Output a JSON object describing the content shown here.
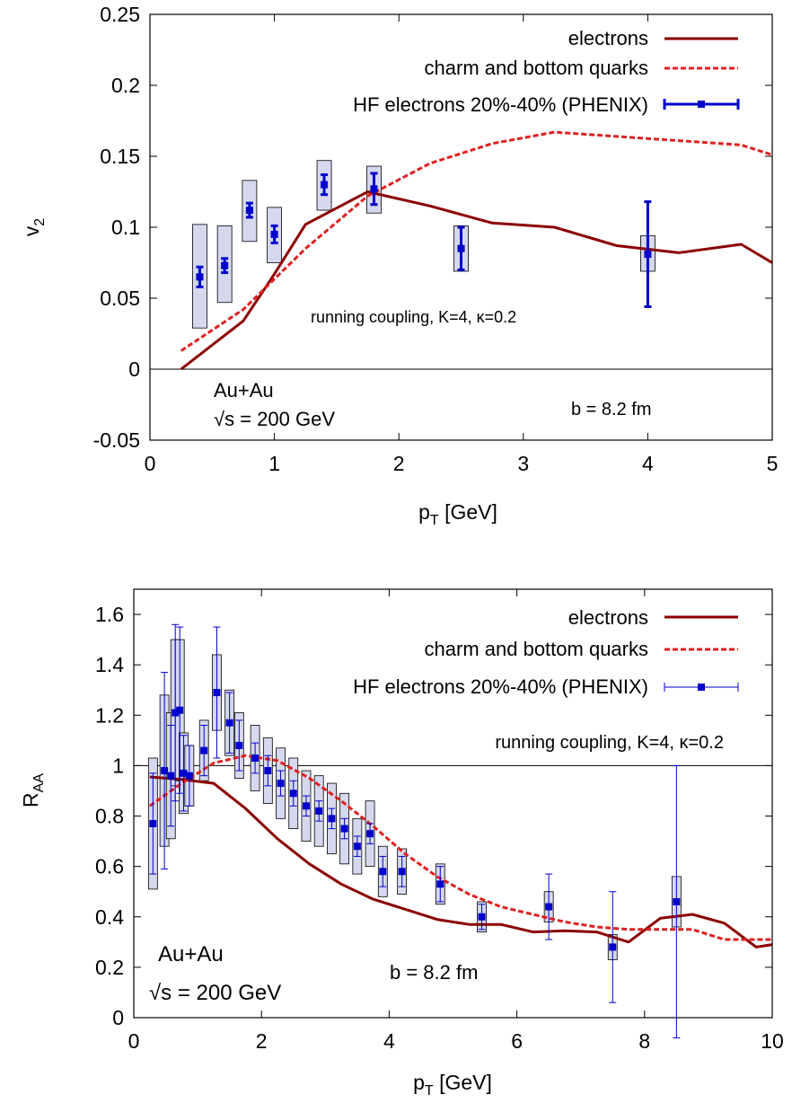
{
  "chart_data": [
    {
      "type": "line",
      "xlabel_main": "p",
      "xlabel_sub": "T",
      "xlabel_rest": " [GeV]",
      "ylabel_main": "v",
      "ylabel_sub": "2",
      "xlim": [
        0,
        5
      ],
      "ylim": [
        -0.05,
        0.25
      ],
      "xticks": [
        "0",
        "1",
        "2",
        "3",
        "4",
        "5"
      ],
      "xtick_values": [
        0,
        1,
        2,
        3,
        4,
        5
      ],
      "yticks": [
        "-0.05",
        "0",
        "0.05",
        "0.1",
        "0.15",
        "0.2",
        "0.25"
      ],
      "ytick_values": [
        -0.05,
        0,
        0.05,
        0.1,
        0.15,
        0.2,
        0.25
      ],
      "hline": 0,
      "legend": [
        "electrons",
        "charm and bottom quarks",
        "HF electrons 20%-40% (PHENIX)"
      ],
      "annotations": {
        "model": "running coupling, K=4, κ=0.2",
        "system": "Au+Au",
        "energy": "√s = 200 GeV",
        "impact": "b = 8.2 fm"
      },
      "series": [
        {
          "name": "electrons",
          "color": "#8B0000",
          "style": "solid",
          "x": [
            0.25,
            0.75,
            1.0,
            1.25,
            1.75,
            2.25,
            2.75,
            3.25,
            3.75,
            4.25,
            4.75,
            5.0
          ],
          "y": [
            0.0,
            0.034,
            0.067,
            0.102,
            0.125,
            0.115,
            0.103,
            0.1,
            0.087,
            0.082,
            0.088,
            0.075
          ]
        },
        {
          "name": "charm and bottom quarks",
          "color": "#E02020",
          "style": "dashed",
          "x": [
            0.25,
            0.75,
            1.25,
            1.75,
            2.25,
            2.75,
            3.25,
            3.75,
            4.25,
            4.75,
            5.0
          ],
          "y": [
            0.013,
            0.042,
            0.085,
            0.122,
            0.145,
            0.159,
            0.167,
            0.164,
            0.161,
            0.158,
            0.151
          ]
        }
      ],
      "data_points": {
        "name": "HF electrons 20%-40% (PHENIX)",
        "color": "#0000CC",
        "x": [
          0.4,
          0.6,
          0.8,
          1.0,
          1.4,
          1.8,
          2.5,
          4.0
        ],
        "y": [
          0.065,
          0.073,
          0.112,
          0.095,
          0.13,
          0.127,
          0.085,
          0.081
        ],
        "err": [
          0.007,
          0.005,
          0.005,
          0.006,
          0.007,
          0.011,
          0.015,
          0.037
        ],
        "sys_low": [
          0.029,
          0.047,
          0.09,
          0.075,
          0.112,
          0.11,
          0.069,
          0.069
        ],
        "sys_high": [
          0.102,
          0.101,
          0.133,
          0.114,
          0.147,
          0.143,
          0.101,
          0.094
        ]
      }
    },
    {
      "type": "line",
      "xlabel_main": "p",
      "xlabel_sub": "T",
      "xlabel_rest": " [GeV]",
      "ylabel_main": "R",
      "ylabel_sub": "AA",
      "xlim": [
        0,
        10
      ],
      "ylim": [
        0,
        1.7
      ],
      "xticks": [
        "0",
        "2",
        "4",
        "6",
        "8",
        "10"
      ],
      "xtick_values": [
        0,
        2,
        4,
        6,
        8,
        10
      ],
      "yticks": [
        "0",
        "0.2",
        "0.4",
        "0.6",
        "0.8",
        "1",
        "1.2",
        "1.4",
        "1.6"
      ],
      "ytick_values": [
        0,
        0.2,
        0.4,
        0.6,
        0.8,
        1,
        1.2,
        1.4,
        1.6
      ],
      "hline": 1,
      "legend": [
        "electrons",
        "charm and bottom quarks",
        "HF electrons 20%-40% (PHENIX)"
      ],
      "annotations": {
        "model": "running coupling, K=4, κ=0.2",
        "system": "Au+Au",
        "energy": "√s = 200 GeV",
        "impact": "b = 8.2 fm"
      },
      "series": [
        {
          "name": "electrons",
          "color": "#8B0000",
          "style": "solid",
          "x": [
            0.25,
            0.75,
            1.25,
            1.75,
            2.25,
            2.75,
            3.25,
            3.75,
            4.25,
            4.75,
            5.25,
            5.75,
            6.25,
            6.75,
            7.25,
            7.75,
            8.25,
            8.75,
            9.25,
            9.75,
            10.0
          ],
          "y": [
            0.955,
            0.945,
            0.93,
            0.83,
            0.71,
            0.61,
            0.53,
            0.47,
            0.43,
            0.39,
            0.37,
            0.37,
            0.34,
            0.345,
            0.34,
            0.3,
            0.395,
            0.41,
            0.375,
            0.28,
            0.29
          ]
        },
        {
          "name": "charm and bottom quarks",
          "color": "#E02020",
          "style": "dashed",
          "x": [
            0.25,
            0.75,
            1.25,
            1.75,
            2.25,
            2.75,
            3.25,
            3.75,
            4.25,
            4.75,
            5.25,
            5.75,
            6.25,
            6.75,
            7.25,
            7.75,
            8.25,
            8.75,
            9.25,
            9.75,
            10.0
          ],
          "y": [
            0.84,
            0.93,
            1.01,
            1.04,
            1.02,
            0.95,
            0.86,
            0.76,
            0.65,
            0.56,
            0.49,
            0.44,
            0.41,
            0.38,
            0.36,
            0.35,
            0.35,
            0.35,
            0.31,
            0.31,
            0.31
          ]
        }
      ],
      "data_points": {
        "name": "HF electrons 20%-40% (PHENIX)",
        "color": "#0000CC",
        "x": [
          0.3,
          0.48,
          0.58,
          0.65,
          0.72,
          0.78,
          0.87,
          1.1,
          1.3,
          1.5,
          1.65,
          1.9,
          2.1,
          2.3,
          2.5,
          2.7,
          2.9,
          3.1,
          3.3,
          3.5,
          3.7,
          3.9,
          4.2,
          4.8,
          5.45,
          6.5,
          7.5,
          8.5
        ],
        "y": [
          0.77,
          0.98,
          0.96,
          1.21,
          1.22,
          0.97,
          0.96,
          1.06,
          1.29,
          1.17,
          1.08,
          1.03,
          0.98,
          0.93,
          0.89,
          0.84,
          0.82,
          0.79,
          0.75,
          0.68,
          0.73,
          0.58,
          0.58,
          0.53,
          0.4,
          0.44,
          0.28,
          0.46
        ],
        "err": [
          0.2,
          0.39,
          0.2,
          0.35,
          0.33,
          0.15,
          0.12,
          0.1,
          0.26,
          0.12,
          0.1,
          0.06,
          0.06,
          0.05,
          0.05,
          0.04,
          0.04,
          0.04,
          0.04,
          0.04,
          0.04,
          0.06,
          0.06,
          0.07,
          0.05,
          0.13,
          0.22,
          0.54
        ],
        "sys": [
          0.26,
          0.3,
          0.25,
          0.29,
          0.28,
          0.16,
          0.12,
          0.12,
          0.15,
          0.13,
          0.13,
          0.13,
          0.13,
          0.14,
          0.14,
          0.14,
          0.14,
          0.14,
          0.14,
          0.11,
          0.13,
          0.1,
          0.09,
          0.08,
          0.06,
          0.06,
          0.05,
          0.1
        ]
      }
    }
  ]
}
